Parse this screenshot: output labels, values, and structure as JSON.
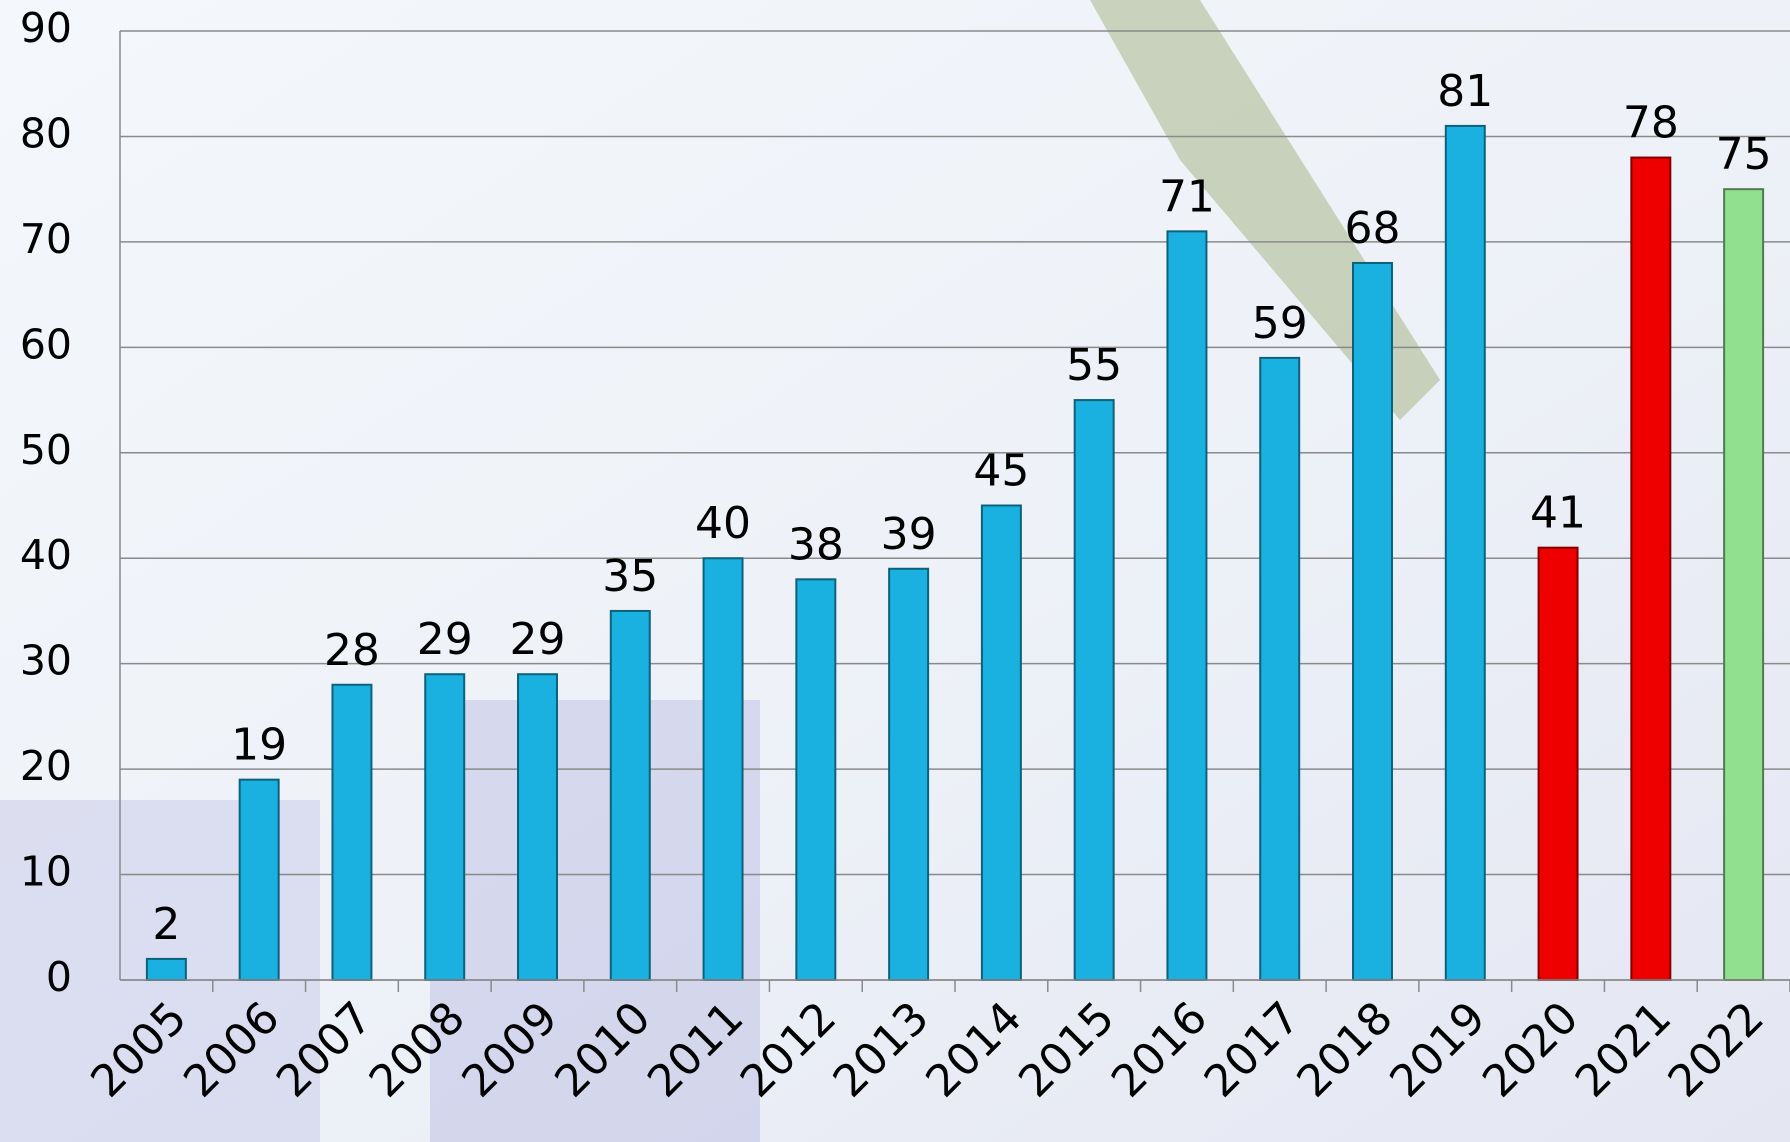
{
  "chart_data": {
    "type": "bar",
    "categories": [
      "2005",
      "2006",
      "2007",
      "2008",
      "2009",
      "2010",
      "2011",
      "2012",
      "2013",
      "2014",
      "2015",
      "2016",
      "2017",
      "2018",
      "2019",
      "2020",
      "2021",
      "2022"
    ],
    "values": [
      2,
      19,
      28,
      29,
      29,
      35,
      40,
      38,
      39,
      45,
      55,
      71,
      59,
      68,
      81,
      41,
      78,
      75
    ],
    "colors": [
      "#1ab0e0",
      "#1ab0e0",
      "#1ab0e0",
      "#1ab0e0",
      "#1ab0e0",
      "#1ab0e0",
      "#1ab0e0",
      "#1ab0e0",
      "#1ab0e0",
      "#1ab0e0",
      "#1ab0e0",
      "#1ab0e0",
      "#1ab0e0",
      "#1ab0e0",
      "#1ab0e0",
      "#ee0000",
      "#ee0000",
      "#90e090"
    ],
    "ylim": [
      0,
      90
    ],
    "yticks": [
      0,
      10,
      20,
      30,
      40,
      50,
      60,
      70,
      80,
      90
    ],
    "grid": true
  }
}
